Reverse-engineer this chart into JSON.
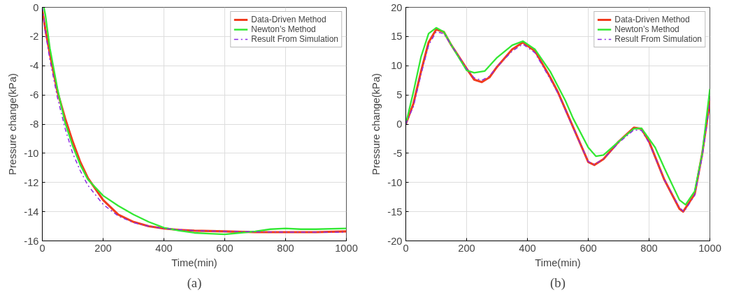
{
  "chart_data": [
    {
      "type": "line",
      "xlabel": "Time(min)",
      "ylabel": "Pressure change(kPa)",
      "annotations": [
        "(a)"
      ],
      "xlim": [
        0,
        1000
      ],
      "ylim": [
        -16,
        0
      ],
      "xticks": [
        0,
        200,
        400,
        600,
        800,
        1000
      ],
      "yticks": [
        -16,
        -14,
        -12,
        -10,
        -8,
        -6,
        -4,
        -2,
        0
      ],
      "grid": true,
      "legend": "top right",
      "series": [
        {
          "name": "Data-Driven Method",
          "color": "#f03c1e",
          "line_style": "solid",
          "x": [
            0,
            10,
            25,
            50,
            75,
            100,
            125,
            150,
            200,
            250,
            300,
            350,
            400,
            450,
            500,
            600,
            700,
            800,
            900,
            1000
          ],
          "values": [
            -0.2,
            -1.5,
            -3.2,
            -5.8,
            -7.6,
            -9.2,
            -10.6,
            -11.7,
            -13.2,
            -14.2,
            -14.7,
            -15.0,
            -15.15,
            -15.25,
            -15.3,
            -15.35,
            -15.4,
            -15.4,
            -15.4,
            -15.35
          ]
        },
        {
          "name": "Newton’s Method",
          "color": "#33e833",
          "line_style": "solid",
          "x": [
            5,
            10,
            25,
            50,
            75,
            100,
            125,
            150,
            200,
            250,
            300,
            350,
            400,
            450,
            500,
            550,
            600,
            650,
            700,
            750,
            800,
            850,
            900,
            1000
          ],
          "values": [
            0,
            -0.5,
            -2.8,
            -5.6,
            -7.9,
            -9.5,
            -10.8,
            -11.8,
            -12.9,
            -13.6,
            -14.2,
            -14.7,
            -15.1,
            -15.3,
            -15.45,
            -15.5,
            -15.55,
            -15.45,
            -15.35,
            -15.2,
            -15.15,
            -15.2,
            -15.2,
            -15.15
          ]
        },
        {
          "name": "Result From Simulation",
          "color": "#8a2be2",
          "line_style": "dashdot",
          "x": [
            0,
            10,
            25,
            50,
            75,
            100,
            125,
            150,
            200,
            250,
            300,
            350,
            400,
            500,
            600,
            800,
            1000
          ],
          "values": [
            0,
            -1.7,
            -3.6,
            -6.2,
            -8.3,
            -10.0,
            -11.2,
            -12.2,
            -13.5,
            -14.3,
            -14.75,
            -15.0,
            -15.15,
            -15.3,
            -15.35,
            -15.4,
            -15.4
          ]
        }
      ]
    },
    {
      "type": "line",
      "xlabel": "Time(min)",
      "ylabel": "Pressure change(kPa)",
      "annotations": [
        "(b)"
      ],
      "xlim": [
        0,
        1000
      ],
      "ylim": [
        -20,
        20
      ],
      "xticks": [
        0,
        200,
        400,
        600,
        800,
        1000
      ],
      "yticks": [
        -20,
        -15,
        -10,
        -5,
        0,
        5,
        10,
        15,
        20
      ],
      "grid": true,
      "legend": "top right",
      "series": [
        {
          "name": "Data-Driven Method",
          "color": "#f03c1e",
          "line_style": "solid",
          "x": [
            0,
            25,
            50,
            75,
            100,
            125,
            150,
            200,
            225,
            250,
            275,
            300,
            350,
            385,
            425,
            475,
            500,
            550,
            600,
            620,
            650,
            700,
            750,
            775,
            800,
            850,
            900,
            912,
            950,
            975,
            1000
          ],
          "values": [
            0,
            3.5,
            9,
            14,
            16.2,
            15.8,
            13.5,
            9.5,
            7.6,
            7.2,
            8,
            9.8,
            12.8,
            14,
            12.5,
            8,
            5.5,
            -0.5,
            -6.5,
            -7,
            -6,
            -3,
            -0.6,
            -0.8,
            -3,
            -9.5,
            -14.5,
            -15,
            -12,
            -5,
            4
          ]
        },
        {
          "name": "Newton’s Method",
          "color": "#33e833",
          "line_style": "solid",
          "x": [
            0,
            25,
            50,
            75,
            100,
            125,
            150,
            200,
            225,
            260,
            300,
            350,
            385,
            425,
            475,
            525,
            550,
            600,
            625,
            650,
            700,
            750,
            775,
            820,
            850,
            900,
            920,
            950,
            975,
            1000
          ],
          "values": [
            0,
            5.5,
            11.5,
            15.5,
            16.5,
            15.8,
            13.5,
            9.2,
            8.8,
            9.1,
            11.4,
            13.5,
            14.2,
            12.8,
            9,
            4,
            1,
            -4,
            -5.5,
            -5.3,
            -3,
            -0.8,
            -0.7,
            -4,
            -7.5,
            -13,
            -13.8,
            -11.5,
            -5,
            6
          ]
        },
        {
          "name": "Result From Simulation",
          "color": "#8a2be2",
          "line_style": "dashdot",
          "x": [
            0,
            25,
            50,
            75,
            100,
            125,
            150,
            200,
            225,
            250,
            275,
            300,
            350,
            385,
            425,
            475,
            500,
            550,
            600,
            620,
            650,
            700,
            750,
            775,
            800,
            850,
            900,
            915,
            950,
            975,
            1000
          ],
          "values": [
            0,
            3,
            8.5,
            13.5,
            15.8,
            15.5,
            13.5,
            9.5,
            7.9,
            7.5,
            8.2,
            9.8,
            12.5,
            13.7,
            12.2,
            7.7,
            5.3,
            -0.6,
            -6.4,
            -6.9,
            -6,
            -3.2,
            -1,
            -1.1,
            -3.2,
            -9.5,
            -14.3,
            -15,
            -12.2,
            -5.5,
            3.5
          ]
        }
      ]
    }
  ]
}
